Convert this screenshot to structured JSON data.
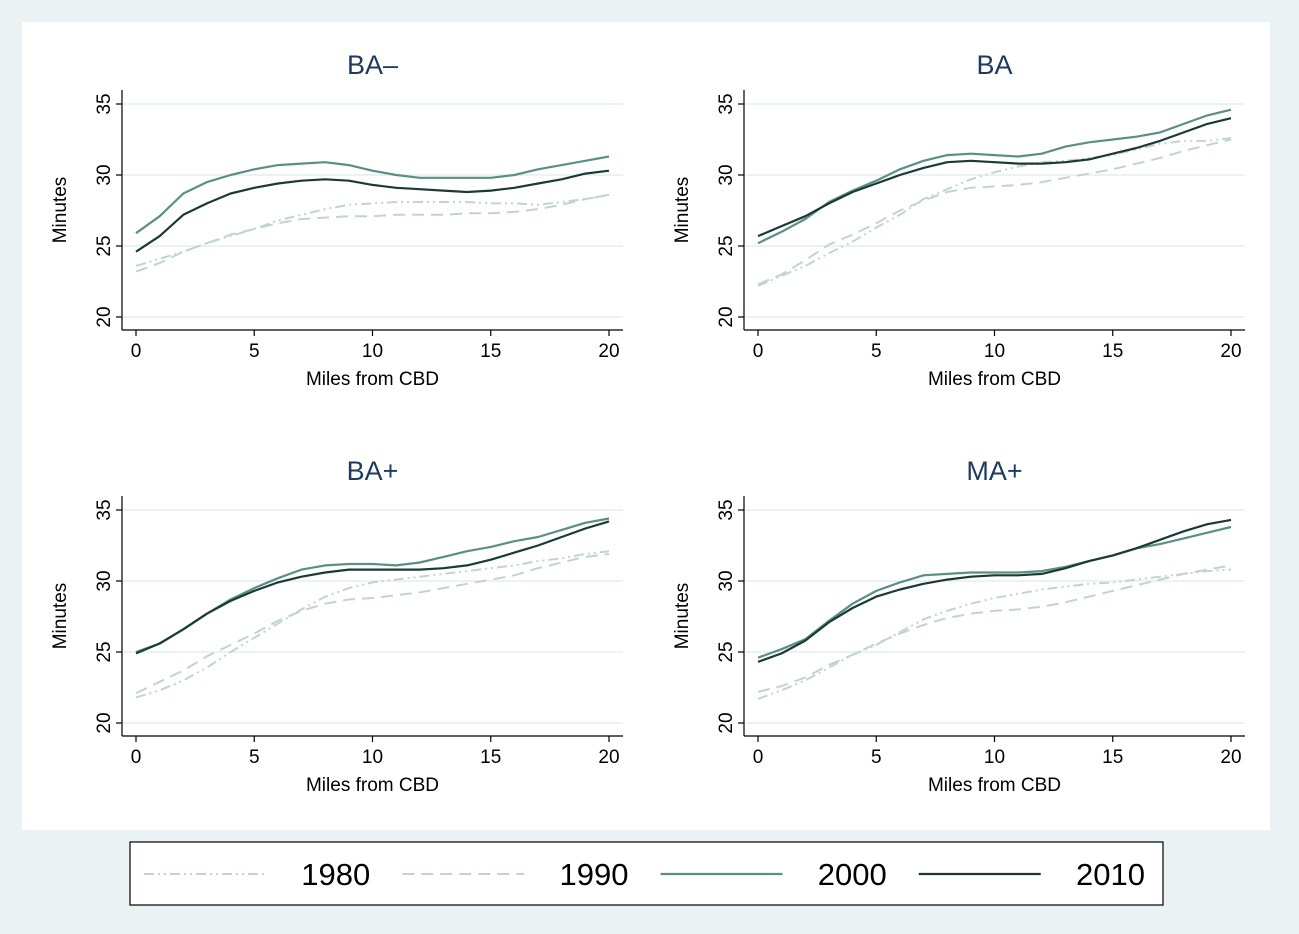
{
  "colors": {
    "outer_background": "#eaf2f3",
    "plot_background": "#ffffff",
    "grid": "#e4eeef",
    "title": "#1e3a5f",
    "axis": "#000000",
    "s1980": "#c3d2d4",
    "s1990": "#c3d2d4",
    "s2000": "#5b8e85",
    "s2010": "#1b3a32"
  },
  "chart_data": [
    {
      "type": "line",
      "title": "BA–",
      "xlabel": "Miles from CBD",
      "ylabel": "Minutes",
      "xlim": [
        0,
        20
      ],
      "ylim": [
        20,
        35
      ],
      "xticks": [
        "0",
        "5",
        "10",
        "15",
        "20"
      ],
      "yticks": [
        "20",
        "25",
        "30",
        "35"
      ],
      "grid": true,
      "x": [
        0,
        1,
        2,
        3,
        4,
        5,
        6,
        7,
        8,
        9,
        10,
        11,
        12,
        13,
        14,
        15,
        16,
        17,
        18,
        19,
        20
      ],
      "series": [
        {
          "name": "1980",
          "values": [
            23.6,
            24.1,
            24.6,
            25.2,
            25.7,
            26.2,
            26.8,
            27.2,
            27.6,
            27.9,
            28.0,
            28.1,
            28.1,
            28.1,
            28.1,
            28.0,
            28.0,
            27.9,
            28.1,
            28.3,
            28.6
          ]
        },
        {
          "name": "1990",
          "values": [
            23.2,
            23.8,
            24.6,
            25.2,
            25.8,
            26.2,
            26.6,
            26.9,
            27.0,
            27.1,
            27.1,
            27.2,
            27.2,
            27.2,
            27.3,
            27.3,
            27.4,
            27.6,
            27.9,
            28.3,
            28.6
          ]
        },
        {
          "name": "2000",
          "values": [
            25.9,
            27.1,
            28.7,
            29.5,
            30.0,
            30.4,
            30.7,
            30.8,
            30.9,
            30.7,
            30.3,
            30.0,
            29.8,
            29.8,
            29.8,
            29.8,
            30.0,
            30.4,
            30.7,
            31.0,
            31.3
          ]
        },
        {
          "name": "2010",
          "values": [
            24.6,
            25.7,
            27.2,
            28.0,
            28.7,
            29.1,
            29.4,
            29.6,
            29.7,
            29.6,
            29.3,
            29.1,
            29.0,
            28.9,
            28.8,
            28.9,
            29.1,
            29.4,
            29.7,
            30.1,
            30.3
          ]
        }
      ]
    },
    {
      "type": "line",
      "title": "BA",
      "xlabel": "Miles from CBD",
      "ylabel": "Minutes",
      "xlim": [
        0,
        20
      ],
      "ylim": [
        20,
        35
      ],
      "xticks": [
        "0",
        "5",
        "10",
        "15",
        "20"
      ],
      "yticks": [
        "20",
        "25",
        "30",
        "35"
      ],
      "grid": true,
      "x": [
        0,
        1,
        2,
        3,
        4,
        5,
        6,
        7,
        8,
        9,
        10,
        11,
        12,
        13,
        14,
        15,
        16,
        17,
        18,
        19,
        20
      ],
      "series": [
        {
          "name": "1980",
          "values": [
            22.2,
            22.9,
            23.6,
            24.5,
            25.3,
            26.3,
            27.2,
            28.3,
            29.0,
            29.7,
            30.2,
            30.6,
            30.9,
            31.0,
            31.2,
            31.4,
            31.8,
            32.2,
            32.4,
            32.4,
            32.6
          ]
        },
        {
          "name": "1990",
          "values": [
            22.3,
            23.0,
            24.0,
            25.1,
            25.8,
            26.6,
            27.5,
            28.2,
            28.8,
            29.1,
            29.2,
            29.3,
            29.5,
            29.8,
            30.1,
            30.4,
            30.8,
            31.2,
            31.7,
            32.1,
            32.5
          ]
        },
        {
          "name": "2000",
          "values": [
            25.2,
            26.0,
            26.9,
            28.1,
            28.9,
            29.6,
            30.4,
            31.0,
            31.4,
            31.5,
            31.4,
            31.3,
            31.5,
            32.0,
            32.3,
            32.5,
            32.7,
            33.0,
            33.6,
            34.2,
            34.6
          ]
        },
        {
          "name": "2010",
          "values": [
            25.7,
            26.4,
            27.1,
            28.0,
            28.8,
            29.4,
            30.0,
            30.5,
            30.9,
            31.0,
            30.9,
            30.8,
            30.8,
            30.9,
            31.1,
            31.5,
            31.9,
            32.4,
            33.0,
            33.6,
            34.0
          ]
        }
      ]
    },
    {
      "type": "line",
      "title": "BA+",
      "xlabel": "Miles from CBD",
      "ylabel": "Minutes",
      "xlim": [
        0,
        20
      ],
      "ylim": [
        20,
        35
      ],
      "xticks": [
        "0",
        "5",
        "10",
        "15",
        "20"
      ],
      "yticks": [
        "20",
        "25",
        "30",
        "35"
      ],
      "grid": true,
      "x": [
        0,
        1,
        2,
        3,
        4,
        5,
        6,
        7,
        8,
        9,
        10,
        11,
        12,
        13,
        14,
        15,
        16,
        17,
        18,
        19,
        20
      ],
      "series": [
        {
          "name": "1980",
          "values": [
            21.8,
            22.3,
            23.0,
            23.9,
            25.0,
            26.0,
            27.0,
            28.0,
            28.9,
            29.5,
            29.9,
            30.1,
            30.3,
            30.5,
            30.7,
            30.9,
            31.1,
            31.4,
            31.6,
            31.9,
            32.1
          ]
        },
        {
          "name": "1990",
          "values": [
            22.1,
            22.9,
            23.7,
            24.7,
            25.5,
            26.3,
            27.2,
            27.9,
            28.4,
            28.7,
            28.8,
            29.0,
            29.2,
            29.5,
            29.8,
            30.1,
            30.4,
            30.9,
            31.3,
            31.7,
            31.9
          ]
        },
        {
          "name": "2000",
          "values": [
            25.0,
            25.6,
            26.6,
            27.7,
            28.7,
            29.5,
            30.2,
            30.8,
            31.1,
            31.2,
            31.2,
            31.1,
            31.3,
            31.7,
            32.1,
            32.4,
            32.8,
            33.1,
            33.6,
            34.1,
            34.4
          ]
        },
        {
          "name": "2010",
          "values": [
            24.9,
            25.6,
            26.6,
            27.7,
            28.6,
            29.3,
            29.9,
            30.3,
            30.6,
            30.8,
            30.8,
            30.8,
            30.8,
            30.9,
            31.1,
            31.5,
            32.0,
            32.5,
            33.1,
            33.7,
            34.2
          ]
        }
      ]
    },
    {
      "type": "line",
      "title": "MA+",
      "xlabel": "Miles from CBD",
      "ylabel": "Minutes",
      "xlim": [
        0,
        20
      ],
      "ylim": [
        20,
        35
      ],
      "xticks": [
        "0",
        "5",
        "10",
        "15",
        "20"
      ],
      "yticks": [
        "20",
        "25",
        "30",
        "35"
      ],
      "grid": true,
      "x": [
        0,
        1,
        2,
        3,
        4,
        5,
        6,
        7,
        8,
        9,
        10,
        11,
        12,
        13,
        14,
        15,
        16,
        17,
        18,
        19,
        20
      ],
      "series": [
        {
          "name": "1980",
          "values": [
            21.7,
            22.3,
            23.0,
            23.9,
            24.8,
            25.5,
            26.4,
            27.3,
            27.9,
            28.4,
            28.8,
            29.1,
            29.4,
            29.6,
            29.8,
            29.9,
            30.1,
            30.3,
            30.5,
            30.7,
            30.8
          ]
        },
        {
          "name": "1990",
          "values": [
            22.2,
            22.6,
            23.2,
            24.1,
            24.8,
            25.6,
            26.3,
            26.9,
            27.4,
            27.7,
            27.9,
            28.0,
            28.2,
            28.5,
            28.9,
            29.3,
            29.7,
            30.1,
            30.5,
            30.8,
            31.1
          ]
        },
        {
          "name": "2000",
          "values": [
            24.6,
            25.2,
            25.9,
            27.2,
            28.4,
            29.3,
            29.9,
            30.4,
            30.5,
            30.6,
            30.6,
            30.6,
            30.7,
            31.0,
            31.4,
            31.8,
            32.3,
            32.6,
            33.0,
            33.4,
            33.8
          ]
        },
        {
          "name": "2010",
          "values": [
            24.3,
            24.9,
            25.8,
            27.1,
            28.1,
            28.9,
            29.4,
            29.8,
            30.1,
            30.3,
            30.4,
            30.4,
            30.5,
            30.9,
            31.4,
            31.8,
            32.3,
            32.9,
            33.5,
            34.0,
            34.3
          ]
        }
      ]
    }
  ],
  "legend": {
    "placement": "bottom",
    "items": [
      "1980",
      "1990",
      "2000",
      "2010"
    ]
  }
}
